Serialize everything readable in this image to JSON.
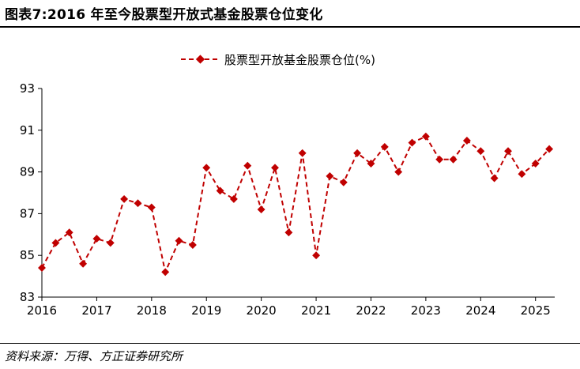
{
  "header": {
    "title": "图表7:2016 年至今股票型开放式基金股票仓位变化"
  },
  "footer": {
    "source": "资料来源：万得、方正证券研究所"
  },
  "chart_data": {
    "type": "line",
    "title": "图表7:2016 年至今股票型开放式基金股票仓位变化",
    "xlabel": "",
    "ylabel": "",
    "ylim": [
      83,
      93
    ],
    "yticks": [
      83,
      85,
      87,
      89,
      91,
      93
    ],
    "xticks": [
      "2016",
      "2017",
      "2018",
      "2019",
      "2020",
      "2021",
      "2022",
      "2023",
      "2024",
      "2025"
    ],
    "xlim": [
      2016,
      2025.35
    ],
    "grid": false,
    "legend": "top-center",
    "color": "#c00000",
    "series": [
      {
        "name": "股票型开放基金股票仓位(%)",
        "x": [
          2016.0,
          2016.25,
          2016.5,
          2016.75,
          2017.0,
          2017.25,
          2017.5,
          2017.75,
          2018.0,
          2018.25,
          2018.5,
          2018.75,
          2019.0,
          2019.25,
          2019.5,
          2019.75,
          2020.0,
          2020.25,
          2020.5,
          2020.75,
          2021.0,
          2021.25,
          2021.5,
          2021.75,
          2022.0,
          2022.25,
          2022.5,
          2022.75,
          2023.0,
          2023.25,
          2023.5,
          2023.75,
          2024.0,
          2024.25,
          2024.5,
          2024.75,
          2025.0,
          2025.25
        ],
        "values": [
          84.4,
          85.6,
          86.1,
          84.6,
          85.8,
          85.6,
          87.7,
          87.5,
          87.3,
          84.2,
          85.7,
          85.5,
          89.2,
          88.1,
          87.7,
          89.3,
          87.2,
          89.2,
          86.1,
          89.9,
          85.0,
          88.8,
          88.5,
          89.9,
          89.4,
          90.2,
          89.0,
          90.4,
          90.7,
          89.6,
          89.6,
          90.5,
          90.0,
          88.7,
          90.0,
          88.9,
          89.4,
          90.1
        ]
      }
    ]
  }
}
